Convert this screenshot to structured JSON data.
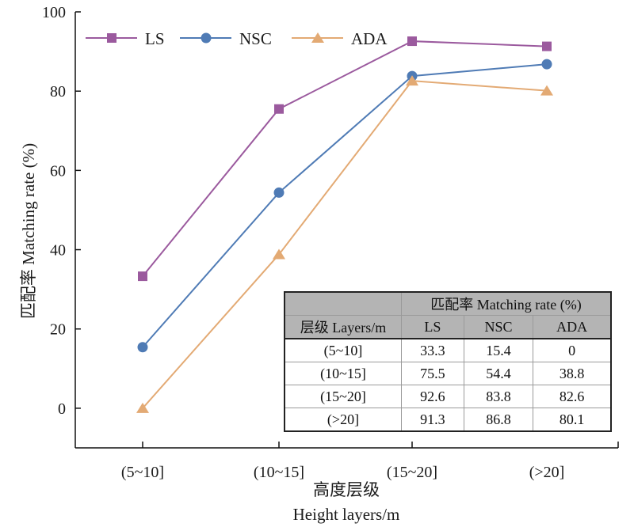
{
  "chart_data": {
    "type": "line",
    "title": "",
    "xlabel_lines": [
      "高度层级",
      "Height layers/m"
    ],
    "ylabel": "匹配率 Matching rate (%)",
    "categories": [
      "(5~10]",
      "(10~15]",
      "(15~20]",
      "(>20]"
    ],
    "ylim": [
      -10,
      100
    ],
    "yticks": [
      0,
      20,
      40,
      60,
      80,
      100
    ],
    "grid": false,
    "legend_position": "top",
    "series": [
      {
        "name": "LS",
        "marker": "square",
        "color": "#9b5a9e",
        "values": [
          33.3,
          75.5,
          92.6,
          91.3
        ]
      },
      {
        "name": "NSC",
        "marker": "circle",
        "color": "#4f7bb5",
        "values": [
          15.4,
          54.4,
          83.8,
          86.8
        ]
      },
      {
        "name": "ADA",
        "marker": "triangle",
        "color": "#e3aa74",
        "values": [
          0,
          38.8,
          82.6,
          80.1
        ]
      }
    ]
  },
  "table": {
    "group_header": "匹配率 Matching rate (%)",
    "row_header": "层级 Layers/m",
    "columns": [
      "LS",
      "NSC",
      "ADA"
    ],
    "rows": [
      {
        "label": "(5~10]",
        "cells": [
          "33.3",
          "15.4",
          "0"
        ]
      },
      {
        "label": "(10~15]",
        "cells": [
          "75.5",
          "54.4",
          "38.8"
        ]
      },
      {
        "label": "(15~20]",
        "cells": [
          "92.6",
          "83.8",
          "82.6"
        ]
      },
      {
        "label": "(>20]",
        "cells": [
          "91.3",
          "86.8",
          "80.1"
        ]
      }
    ]
  }
}
